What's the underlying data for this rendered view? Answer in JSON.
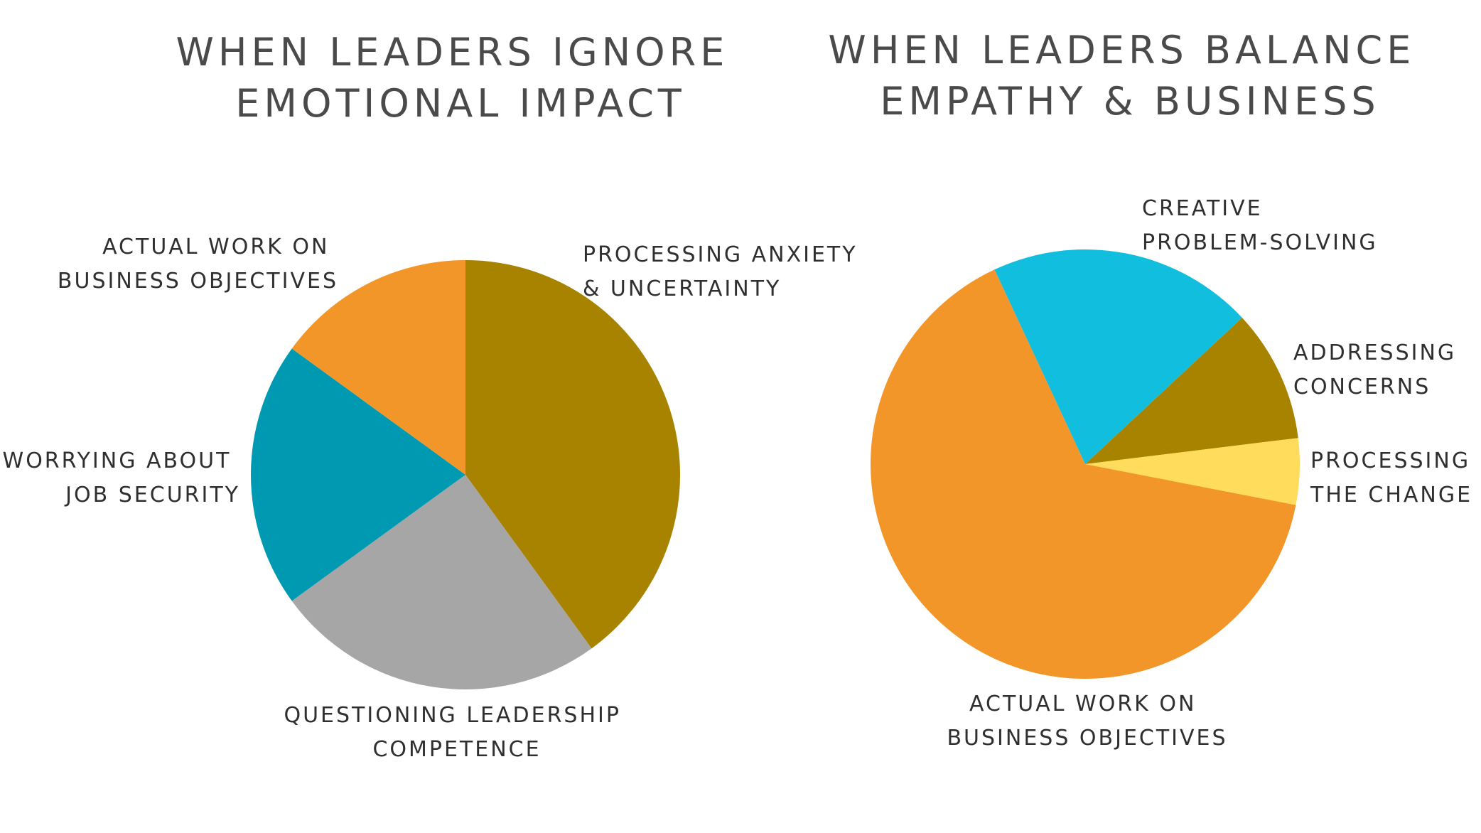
{
  "chart_data": [
    {
      "type": "pie",
      "title": [
        "WHEN LEADERS IGNORE",
        "EMOTIONAL IMPACT"
      ],
      "start_angle_deg": 0,
      "direction": "clockwise",
      "slices": [
        {
          "label": [
            "PROCESSING ANXIETY",
            "& UNCERTAINTY"
          ],
          "value": 40,
          "color": "#A78300"
        },
        {
          "label": [
            "QUESTIONING LEADERSHIP",
            "COMPETENCE"
          ],
          "value": 25,
          "color": "#A6A6A6"
        },
        {
          "label": [
            "WORRYING ABOUT",
            "JOB SECURITY"
          ],
          "value": 20,
          "color": "#0099B2"
        },
        {
          "label": [
            "ACTUAL WORK ON",
            "BUSINESS OBJECTIVES"
          ],
          "value": 15,
          "color": "#F2962A"
        }
      ]
    },
    {
      "type": "pie",
      "title": [
        "WHEN LEADERS BALANCE",
        "EMPATHY & BUSINESS"
      ],
      "start_angle_deg": -25,
      "direction": "clockwise",
      "slices": [
        {
          "label": [
            "CREATIVE",
            "PROBLEM-SOLVING"
          ],
          "value": 20,
          "color": "#12BEDE"
        },
        {
          "label": [
            "ADDRESSING",
            "CONCERNS"
          ],
          "value": 10,
          "color": "#A78300"
        },
        {
          "label": [
            "PROCESSING",
            "THE CHANGE"
          ],
          "value": 5,
          "color": "#FFDC5C"
        },
        {
          "label": [
            "ACTUAL WORK ON",
            "BUSINESS OBJECTIVES"
          ],
          "value": 65,
          "color": "#F2962A"
        }
      ]
    }
  ]
}
